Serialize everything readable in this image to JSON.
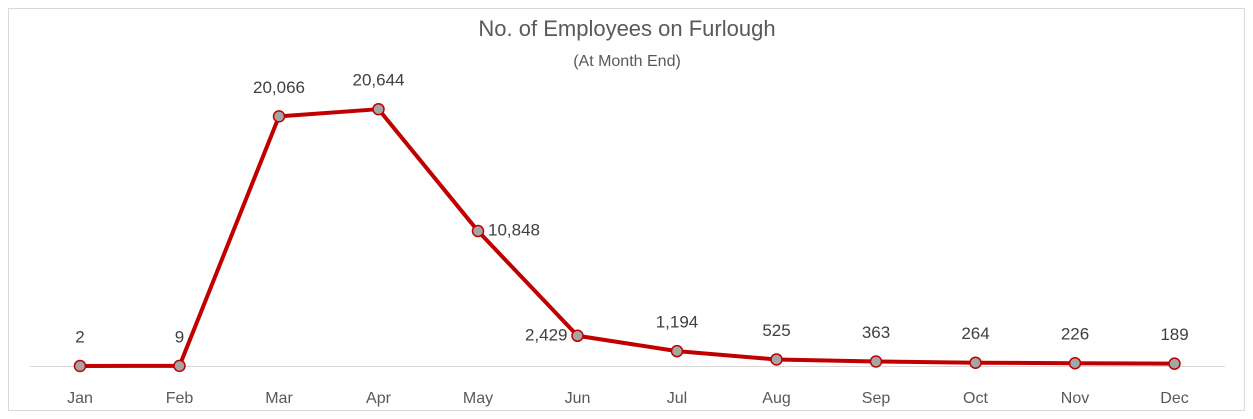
{
  "chart_data": {
    "type": "line",
    "title": "No. of Employees on Furlough",
    "subtitle": "(At Month End)",
    "categories": [
      "Jan",
      "Feb",
      "Mar",
      "Apr",
      "May",
      "Jun",
      "Jul",
      "Aug",
      "Sep",
      "Oct",
      "Nov",
      "Dec"
    ],
    "values": [
      2,
      9,
      20066,
      20644,
      10848,
      2429,
      1194,
      525,
      363,
      264,
      226,
      189
    ],
    "value_labels": [
      "2",
      "9",
      "20,066",
      "20,644",
      "10,848",
      "2,429",
      "1,194",
      "525",
      "363",
      "264",
      "226",
      "189"
    ],
    "color": "#c00000",
    "marker_color": "#a5a5a5",
    "ylim": [
      0,
      25000
    ]
  }
}
